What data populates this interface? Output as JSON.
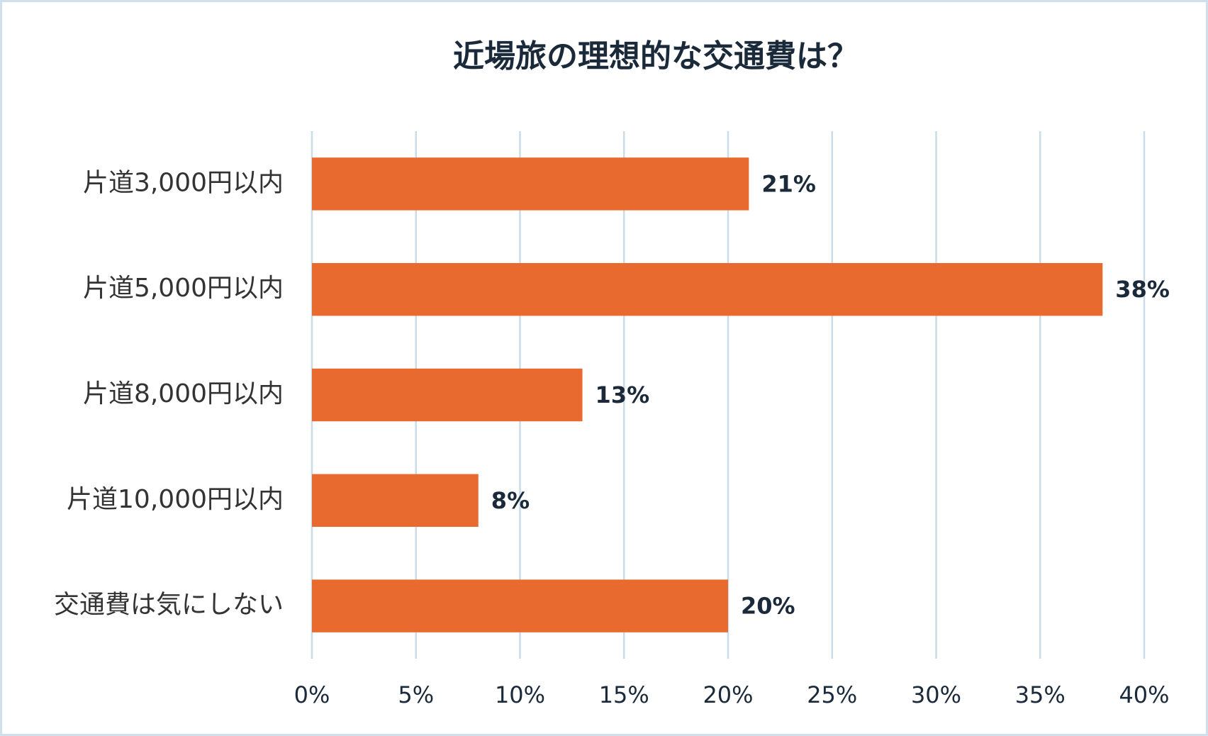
{
  "chart_data": {
    "type": "bar",
    "orientation": "horizontal",
    "title": "近場旅の理想的な交通費は？",
    "categories": [
      "片道3,000円以内",
      "片道5,000円以内",
      "片道8,000円以内",
      "片道10,000円以内",
      "交通費は気にしない"
    ],
    "values": [
      21,
      38,
      13,
      8,
      20
    ],
    "value_labels": [
      "21%",
      "38%",
      "13%",
      "8%",
      "20%"
    ],
    "color": "#e96a2e",
    "xlim": [
      0,
      40
    ],
    "xticks": [
      {
        "value": 0,
        "label": "0%"
      },
      {
        "value": 5,
        "label": "5%"
      },
      {
        "value": 10,
        "label": "10%"
      },
      {
        "value": 15,
        "label": "15%"
      },
      {
        "value": 20,
        "label": "20%"
      },
      {
        "value": 25,
        "label": "25%"
      },
      {
        "value": 30,
        "label": "30%"
      },
      {
        "value": 35,
        "label": "35%"
      },
      {
        "value": 40,
        "label": "40%"
      }
    ],
    "grid": true
  }
}
